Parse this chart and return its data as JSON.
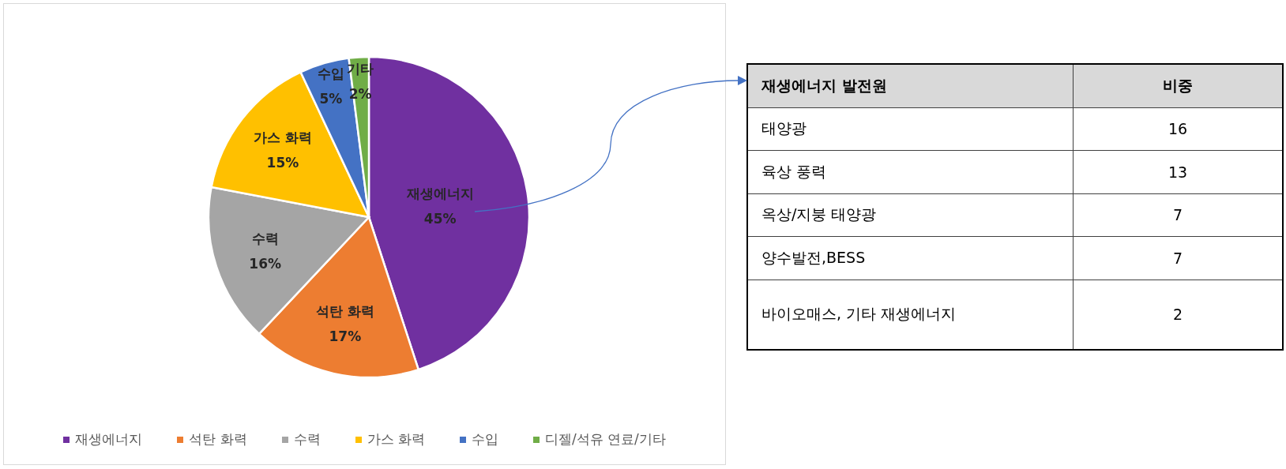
{
  "chart_data": [
    {
      "type": "pie",
      "categories": [
        "재생에너지",
        "석탄 화력",
        "수력",
        "가스 화력",
        "수입",
        "디젤/석유 연료/기타"
      ],
      "values": [
        45,
        17,
        16,
        15,
        5,
        2
      ],
      "colors": [
        "#7030a0",
        "#ed7d31",
        "#a5a5a5",
        "#ffc000",
        "#4472c4",
        "#70ad47"
      ],
      "value_labels": [
        "재생에너지\n45%",
        "석탄 화력\n17%",
        "수력\n16%",
        "가스 화력\n15%",
        "수입\n5%",
        "기타\n2%"
      ],
      "legend": "bottom"
    },
    {
      "type": "other",
      "xlabel": "재생에너지 발전원",
      "ylabel": "비중",
      "categories": [
        "태양광",
        "육상 풍력",
        "옥상/지붕 태양광",
        "양수발전,BESS",
        "바이오매스, 기타 재생에너지"
      ],
      "values": [
        16,
        13,
        7,
        7,
        2
      ],
      "data_labels": true
    }
  ]
}
